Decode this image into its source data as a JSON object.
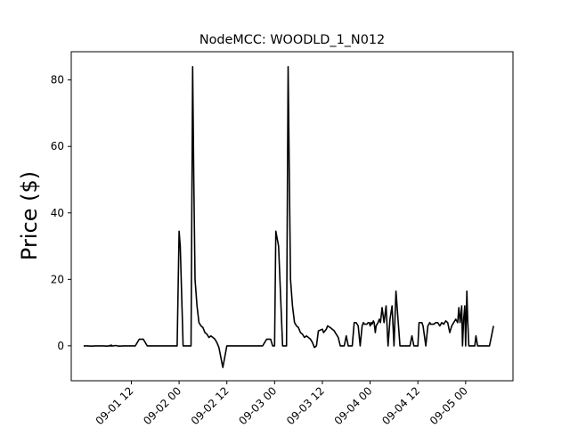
{
  "chart_data": {
    "type": "line",
    "title": "NodeMCC: WOODLD_1_N012",
    "xlabel": "",
    "ylabel": "Price ($)",
    "x_unit": "hours since 09-01 00",
    "xlim": [
      -3.1,
      107.9
    ],
    "ylim": [
      -10.5,
      88.5
    ],
    "yticks": [
      0,
      20,
      40,
      60,
      80
    ],
    "xticks": [
      {
        "label": "09-01 12",
        "x": 12
      },
      {
        "label": "09-02 00",
        "x": 24
      },
      {
        "label": "09-02 12",
        "x": 36
      },
      {
        "label": "09-03 00",
        "x": 48
      },
      {
        "label": "09-03 12",
        "x": 60
      },
      {
        "label": "09-04 00",
        "x": 72
      },
      {
        "label": "09-04 12",
        "x": 84
      },
      {
        "label": "09-05 00",
        "x": 96
      }
    ],
    "grid": false,
    "series": [
      {
        "color": "#000000",
        "x": [
          0,
          1,
          2,
          3,
          4,
          5,
          6,
          7,
          6.5,
          7,
          7.5,
          8,
          8.5,
          9,
          10,
          11,
          12,
          13,
          14,
          15,
          16,
          17,
          18,
          19,
          20,
          21,
          22,
          23,
          23.5,
          24,
          24.3,
          25,
          26,
          27,
          27.4,
          27.7,
          28,
          28.5,
          29,
          29.5,
          30,
          30.5,
          31,
          31.5,
          32,
          32.5,
          33,
          33.5,
          34,
          35,
          36,
          37,
          38,
          39,
          40,
          41,
          42,
          43,
          44,
          45,
          46,
          47,
          47.5,
          48,
          48.3,
          49,
          50,
          51,
          51.4,
          51.7,
          52,
          52.5,
          53,
          53.5,
          54,
          54.5,
          55,
          55.5,
          56,
          56.5,
          57,
          57.5,
          58,
          58.5,
          59,
          60,
          60.3,
          61,
          61.3,
          62,
          62.5,
          63,
          63.2,
          63.5,
          64,
          64.5,
          65,
          65.5,
          66,
          66.5,
          67,
          67.5,
          68,
          68.5,
          69,
          69.5,
          70,
          70.3,
          70.6,
          71,
          71.2,
          71.5,
          71.8,
          72,
          72.3,
          72.5,
          72.8,
          73,
          73.3,
          73.5,
          74,
          74.3,
          74.6,
          75,
          75.5,
          76,
          76.5,
          77,
          77.5,
          78,
          78.5,
          79,
          79.5,
          80,
          80.5,
          81,
          81.5,
          82,
          82.5,
          83,
          83.5,
          84,
          84.3,
          85,
          85.3,
          86,
          86.5,
          87,
          87.2,
          87.5,
          88,
          88.5,
          89,
          89.5,
          90,
          90.5,
          91,
          91.5,
          92,
          92.5,
          93,
          93.5,
          94,
          94.3,
          94.6,
          95,
          95.2,
          95.5,
          95.8,
          96,
          96.3,
          96.5,
          96.8,
          97,
          97.3,
          97.5,
          98,
          98.3,
          98.6,
          99,
          99.5,
          100,
          100.5,
          101,
          101.5,
          102,
          102.5,
          103
        ],
        "y": [
          0,
          0,
          -0.1,
          0,
          0,
          0,
          -0.1,
          0.2,
          0,
          0,
          0,
          0.1,
          0,
          -0.1,
          0,
          0,
          0,
          0,
          2,
          2,
          0,
          0,
          0,
          0,
          0,
          0,
          0,
          0,
          0,
          34.5,
          30,
          0,
          0,
          0,
          84,
          50,
          20,
          12,
          7,
          6,
          5.5,
          4,
          3.5,
          2.5,
          3,
          2.5,
          2,
          1,
          -0.5,
          -6.5,
          0,
          0,
          0,
          0,
          0,
          0,
          0,
          0,
          0,
          0,
          2,
          2,
          0,
          0,
          34.5,
          30,
          0,
          0,
          84,
          50,
          20,
          12,
          7,
          6,
          5.5,
          4,
          3.5,
          2.5,
          3,
          2.5,
          2,
          1,
          -0.5,
          0,
          4.5,
          5,
          4,
          5,
          6,
          5.5,
          5,
          4.5,
          4,
          3.5,
          2.5,
          0,
          0,
          0,
          3,
          0,
          0,
          0,
          7,
          7,
          6,
          0,
          6,
          7,
          6.5,
          6.5,
          6.5,
          7,
          7,
          6,
          7,
          6.5,
          7.5,
          7,
          4,
          6,
          7,
          8,
          7,
          11.5,
          7,
          12,
          0,
          8,
          12,
          0,
          16.5,
          8,
          0,
          0,
          0,
          0,
          0,
          0,
          3,
          0,
          0,
          0,
          7,
          7,
          6,
          0,
          6,
          7,
          6.5,
          6.5,
          6.5,
          7,
          7,
          6,
          7,
          6.5,
          7.5,
          7,
          4,
          6,
          7,
          8,
          7,
          11.5,
          7,
          12,
          0,
          8,
          12,
          0,
          16.5,
          8,
          0,
          0,
          0,
          0,
          0,
          0,
          3,
          0,
          0,
          0,
          0,
          0,
          0,
          0,
          3,
          6
        ]
      }
    ]
  }
}
